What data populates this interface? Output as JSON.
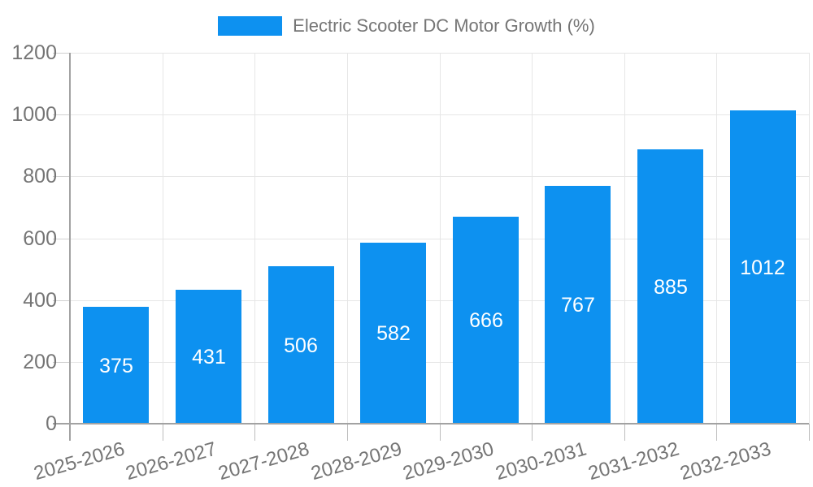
{
  "chart_data": {
    "type": "bar",
    "title": "Electric Scooter DC Motor Growth (%)",
    "legend": {
      "position": "top-center",
      "entries": [
        "Electric Scooter DC Motor Growth (%)"
      ]
    },
    "categories": [
      "2025-2026",
      "2026-2027",
      "2027-2028",
      "2028-2029",
      "2029-2030",
      "2030-2031",
      "2031-2032",
      "2032-2033"
    ],
    "series": [
      {
        "name": "Electric Scooter DC Motor Growth (%)",
        "values": [
          375,
          431,
          506,
          582,
          666,
          767,
          885,
          1012
        ]
      }
    ],
    "value_labels_shown": true,
    "xlabel": "",
    "ylabel": "",
    "ylim": [
      0,
      1200
    ],
    "yticks": [
      0,
      200,
      400,
      600,
      800,
      1000,
      1200
    ],
    "grid": true,
    "x_label_rotation_deg": -16,
    "colors": {
      "bar": "#0d91f0",
      "value_label": "#ffffff",
      "axis_label": "#757575",
      "legend_text": "#757575",
      "gridline": "#e6e6e6",
      "axis_line": "#a2a2a2",
      "background": "#ffffff"
    }
  }
}
